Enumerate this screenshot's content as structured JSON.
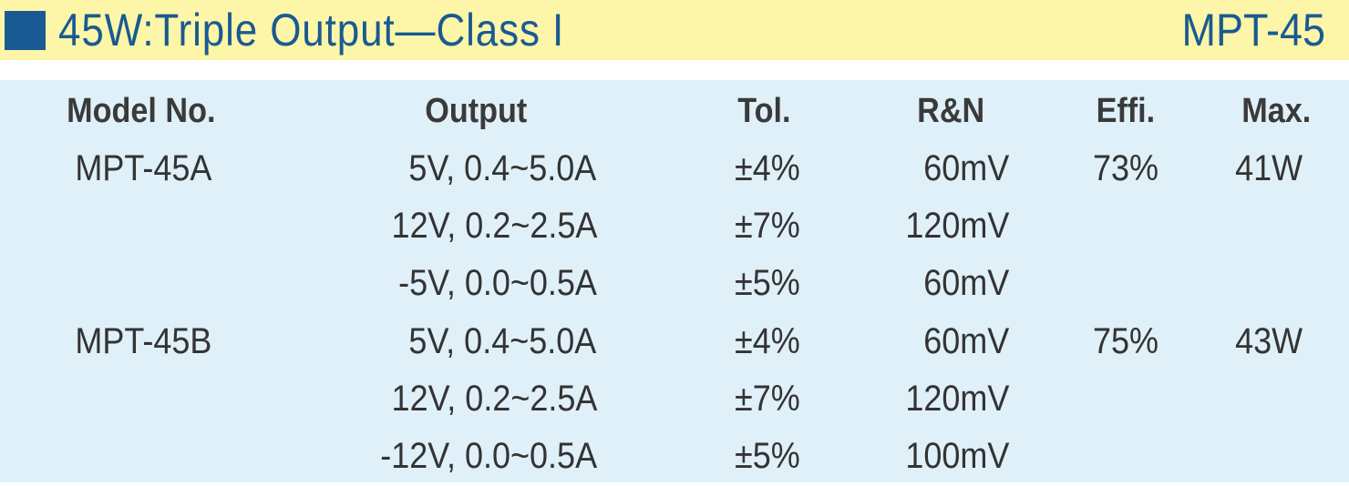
{
  "header": {
    "title": "45W:Triple Output—Class I",
    "model": "MPT-45"
  },
  "table": {
    "columns": [
      "Model No.",
      "Output",
      "Tol.",
      "R&N",
      "Effi.",
      "Max."
    ],
    "rows": [
      {
        "model": "MPT-45A",
        "output": "5V, 0.4~5.0A",
        "tol": "±4%",
        "rn": "60mV",
        "effi": "73%",
        "max": "41W"
      },
      {
        "output": "12V, 0.2~2.5A",
        "tol": "±7%",
        "rn": "120mV"
      },
      {
        "output": "-5V, 0.0~0.5A",
        "tol": "±5%",
        "rn": "60mV"
      },
      {
        "model": "MPT-45B",
        "output": "5V, 0.4~5.0A",
        "tol": "±4%",
        "rn": "60mV",
        "effi": "75%",
        "max": "43W"
      },
      {
        "output": "12V, 0.2~2.5A",
        "tol": "±7%",
        "rn": "120mV"
      },
      {
        "output": "-12V, 0.0~0.5A",
        "tol": "±5%",
        "rn": "100mV"
      }
    ]
  }
}
